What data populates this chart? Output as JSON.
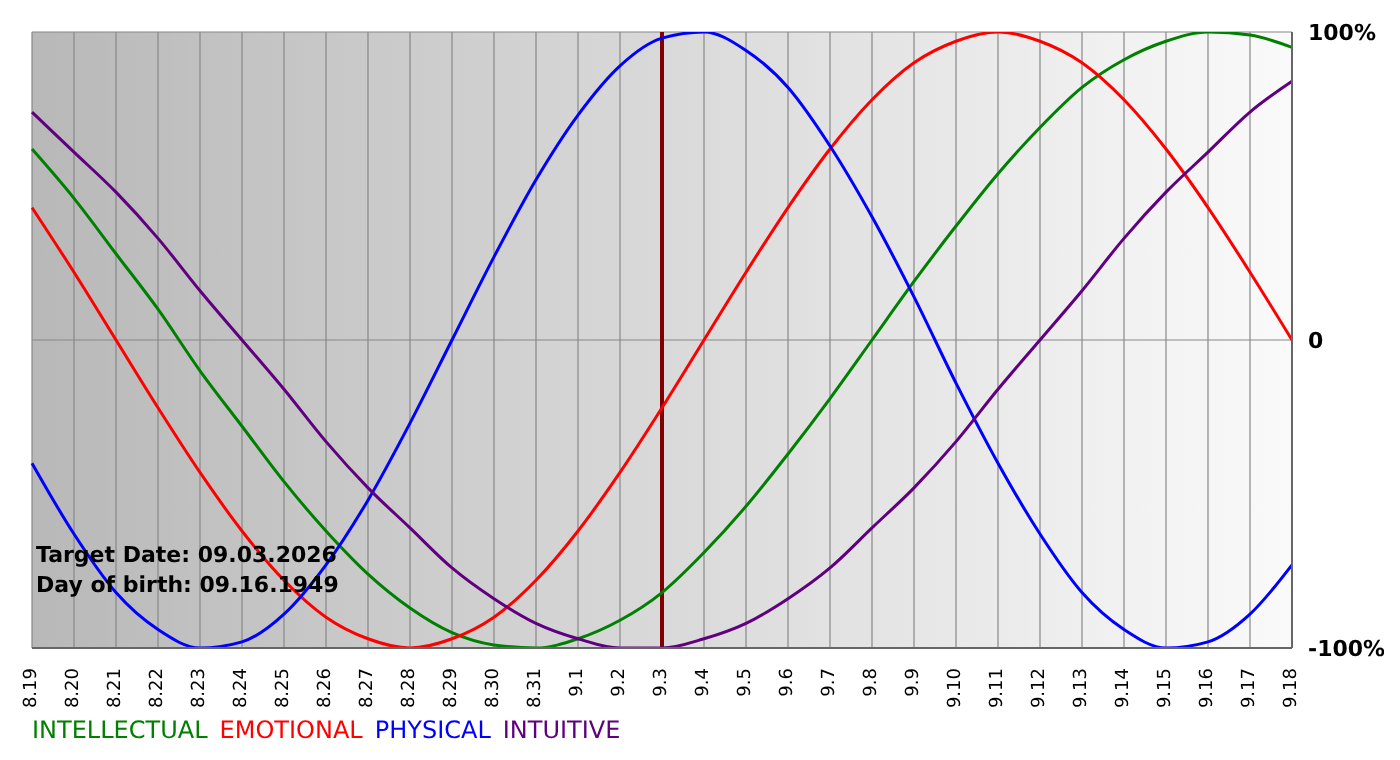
{
  "chart_data": {
    "type": "line",
    "categories": [
      "8.19",
      "8.20",
      "8.21",
      "8.22",
      "8.23",
      "8.24",
      "8.25",
      "8.26",
      "8.27",
      "8.28",
      "8.29",
      "8.30",
      "8.31",
      "9.1",
      "9.2",
      "9.3",
      "9.4",
      "9.5",
      "9.6",
      "9.7",
      "9.8",
      "9.9",
      "9.10",
      "9.11",
      "9.12",
      "9.13",
      "9.14",
      "9.15",
      "9.16",
      "9.17",
      "9.18"
    ],
    "series": [
      {
        "name": "INTELLECTUAL",
        "color": "#008000",
        "values": [
          62,
          46,
          28,
          10,
          -10,
          -28,
          -46,
          -62,
          -76,
          -87,
          -95,
          -99,
          -100,
          -97,
          -91,
          -82,
          -69,
          -54,
          -37,
          -19,
          0,
          19,
          37,
          54,
          69,
          82,
          91,
          97,
          100,
          99,
          95
        ]
      },
      {
        "name": "EMOTIONAL",
        "color": "#ff0000",
        "values": [
          43,
          22,
          0,
          -22,
          -43,
          -62,
          -78,
          -90,
          -97,
          -100,
          -97,
          -90,
          -78,
          -62,
          -43,
          -22,
          0,
          22,
          43,
          62,
          78,
          90,
          97,
          100,
          97,
          90,
          78,
          62,
          43,
          22,
          0
        ]
      },
      {
        "name": "PHYSICAL",
        "color": "#0000ff",
        "values": [
          -40,
          -63,
          -82,
          -94,
          -100,
          -98,
          -89,
          -73,
          -52,
          -27,
          0,
          27,
          52,
          73,
          89,
          98,
          100,
          94,
          82,
          63,
          40,
          14,
          -14,
          -40,
          -63,
          -82,
          -94,
          -100,
          -98,
          -89,
          -73
        ]
      },
      {
        "name": "INTUITIVE",
        "color": "#600080",
        "values": [
          74,
          61,
          48,
          33,
          16,
          0,
          -16,
          -33,
          -48,
          -61,
          -74,
          -84,
          -92,
          -97,
          -100,
          -100,
          -97,
          -92,
          -84,
          -74,
          -61,
          -48,
          -33,
          -16,
          0,
          16,
          33,
          48,
          61,
          74,
          84
        ]
      }
    ],
    "ylim": [
      -100,
      100
    ],
    "yticks": [
      {
        "value": -100,
        "label": "-100%"
      },
      0,
      {
        "value": 100,
        "label": "100%"
      }
    ],
    "grid": true,
    "legend": "bottom left",
    "ref_lines": [
      {
        "axis": "x",
        "value": "9.3",
        "color": "#800000"
      }
    ],
    "annotations": [
      "Target Date: 09.03.2026",
      "Day of birth: 09.16.1949"
    ]
  }
}
